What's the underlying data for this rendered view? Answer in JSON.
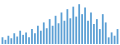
{
  "chart_data": {
    "type": "bar",
    "values": [
      8,
      5,
      10,
      7,
      13,
      9,
      16,
      11,
      14,
      8,
      18,
      13,
      22,
      16,
      26,
      19,
      30,
      22,
      34,
      25,
      38,
      28,
      42,
      31,
      45,
      33,
      48,
      36,
      44,
      28,
      38,
      24,
      30,
      18,
      36,
      26,
      8,
      14,
      10,
      18
    ],
    "color": "#5b9fd4",
    "ylim": [
      0,
      51.84
    ],
    "tick_labels": false,
    "grid": false
  }
}
